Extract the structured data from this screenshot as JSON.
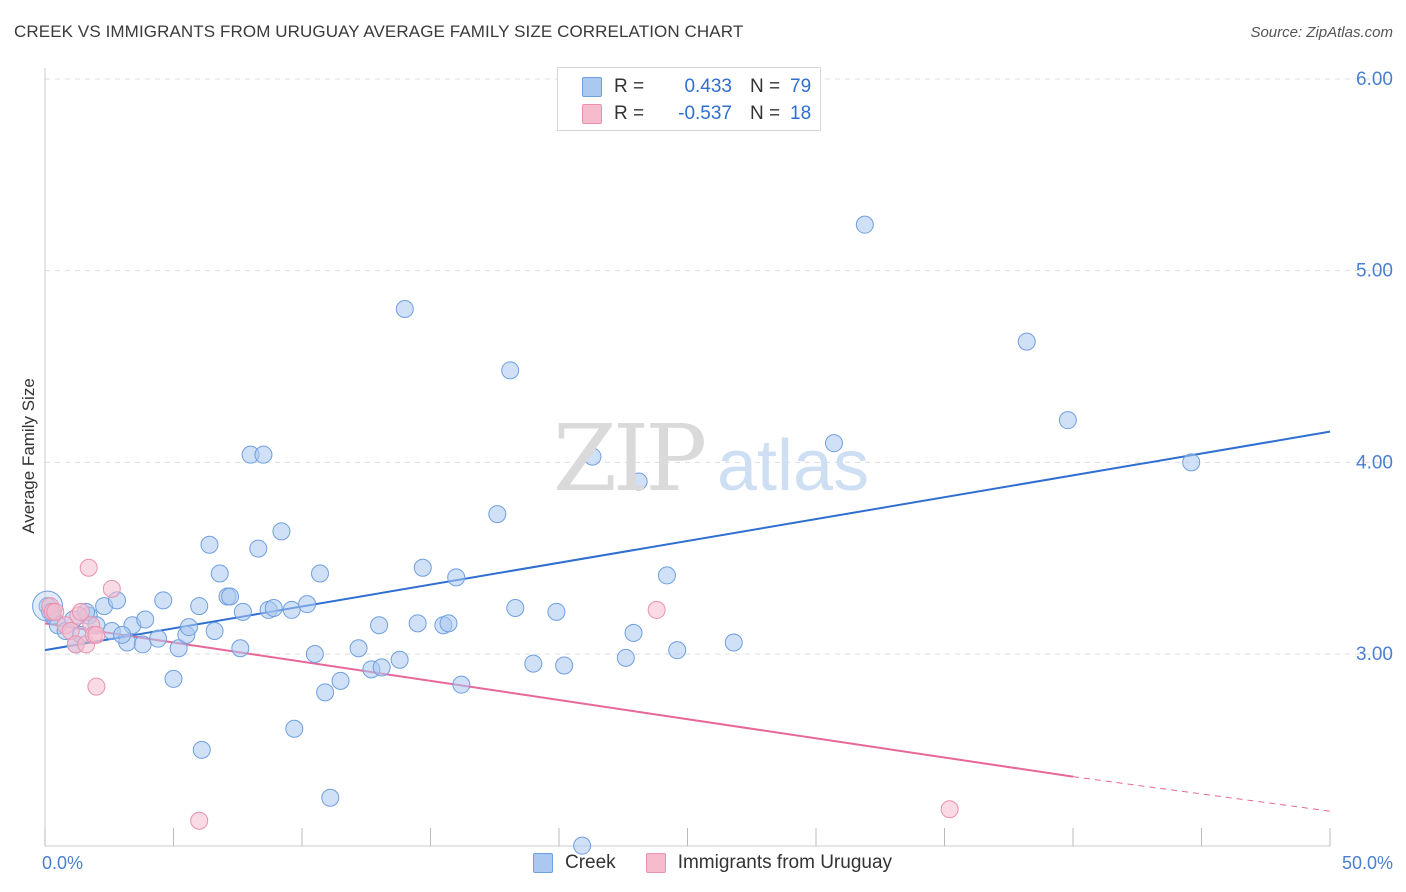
{
  "title": "CREEK VS IMMIGRANTS FROM URUGUAY AVERAGE FAMILY SIZE CORRELATION CHART",
  "source": "Source: ZipAtlas.com",
  "watermark": {
    "zip": "ZIP",
    "atlas": "atlas"
  },
  "legend": {
    "rows": [
      {
        "r_label": "R =",
        "r_value": "0.433",
        "n_label": "N =",
        "n_value": "79"
      },
      {
        "r_label": "R =",
        "r_value": "-0.537",
        "n_label": "N =",
        "n_value": "18"
      }
    ]
  },
  "bottom_legend": {
    "creek": "Creek",
    "uruguay": "Immigrants from Uruguay"
  },
  "colors": {
    "creek_fill": "#aac8f0",
    "creek_stroke": "#6f9fdf",
    "creek_line": "#2f6fd0",
    "uruguay_fill": "#f6bccd",
    "uruguay_stroke": "#e893ae",
    "uruguay_line": "#e8679a",
    "label": "#4a7fd0",
    "grid": "#dddddd"
  },
  "chart_data": {
    "type": "scatter",
    "xlabel": "",
    "ylabel": "Average Family Size",
    "xlim": [
      0,
      50
    ],
    "ylim": [
      2.0,
      6.1
    ],
    "x_tick_labels": [
      "0.0%",
      "50.0%"
    ],
    "y_ticks": [
      3.0,
      4.0,
      5.0,
      6.0
    ],
    "y_tick_labels": [
      "3.00",
      "4.00",
      "5.00",
      "6.00"
    ],
    "series": [
      {
        "name": "Creek",
        "points": [
          [
            0.1,
            3.25
          ],
          [
            0.3,
            3.2
          ],
          [
            0.5,
            3.15
          ],
          [
            0.8,
            3.12
          ],
          [
            1.1,
            3.18
          ],
          [
            1.2,
            3.05
          ],
          [
            1.4,
            3.1
          ],
          [
            1.7,
            3.2
          ],
          [
            2.0,
            3.15
          ],
          [
            2.3,
            3.25
          ],
          [
            2.6,
            3.12
          ],
          [
            2.8,
            3.28
          ],
          [
            3.2,
            3.06
          ],
          [
            3.4,
            3.15
          ],
          [
            3.8,
            3.05
          ],
          [
            3.9,
            3.18
          ],
          [
            4.4,
            3.08
          ],
          [
            4.6,
            3.28
          ],
          [
            5.0,
            2.87
          ],
          [
            5.2,
            3.03
          ],
          [
            5.5,
            3.1
          ],
          [
            5.6,
            3.14
          ],
          [
            6.0,
            3.25
          ],
          [
            6.1,
            2.5
          ],
          [
            6.4,
            3.57
          ],
          [
            6.6,
            3.12
          ],
          [
            6.8,
            3.42
          ],
          [
            7.1,
            3.3
          ],
          [
            7.2,
            3.3
          ],
          [
            7.6,
            3.03
          ],
          [
            7.7,
            3.22
          ],
          [
            8.0,
            4.04
          ],
          [
            8.3,
            3.55
          ],
          [
            8.5,
            4.04
          ],
          [
            8.7,
            3.23
          ],
          [
            8.9,
            3.24
          ],
          [
            9.2,
            3.64
          ],
          [
            9.6,
            3.23
          ],
          [
            9.7,
            2.61
          ],
          [
            10.2,
            3.26
          ],
          [
            10.5,
            3.0
          ],
          [
            10.7,
            3.42
          ],
          [
            10.9,
            2.8
          ],
          [
            11.1,
            2.25
          ],
          [
            11.5,
            2.86
          ],
          [
            12.2,
            3.03
          ],
          [
            12.7,
            2.92
          ],
          [
            13.0,
            3.15
          ],
          [
            13.8,
            2.97
          ],
          [
            14.0,
            4.8
          ],
          [
            14.5,
            3.16
          ],
          [
            14.7,
            3.45
          ],
          [
            15.5,
            3.15
          ],
          [
            15.7,
            3.16
          ],
          [
            16.0,
            3.4
          ],
          [
            16.2,
            2.84
          ],
          [
            17.6,
            3.73
          ],
          [
            18.1,
            4.48
          ],
          [
            18.3,
            3.24
          ],
          [
            19.0,
            2.95
          ],
          [
            19.9,
            3.22
          ],
          [
            20.2,
            2.94
          ],
          [
            20.9,
            2.0
          ],
          [
            21.3,
            4.03
          ],
          [
            22.6,
            2.98
          ],
          [
            22.9,
            3.11
          ],
          [
            23.1,
            3.9
          ],
          [
            24.2,
            3.41
          ],
          [
            24.6,
            3.02
          ],
          [
            26.8,
            3.06
          ],
          [
            30.7,
            4.1
          ],
          [
            31.9,
            5.24
          ],
          [
            38.2,
            4.63
          ],
          [
            39.8,
            4.22
          ],
          [
            44.6,
            4.0
          ],
          [
            0.2,
            3.22
          ],
          [
            1.6,
            3.22
          ],
          [
            3.0,
            3.1
          ],
          [
            13.1,
            2.93
          ]
        ],
        "trend": {
          "x0": 0,
          "y0": 3.02,
          "x1": 50,
          "y1": 4.16
        }
      },
      {
        "name": "Immigrants from Uruguay",
        "points": [
          [
            0.2,
            3.25
          ],
          [
            0.3,
            3.22
          ],
          [
            0.4,
            3.22
          ],
          [
            0.8,
            3.15
          ],
          [
            1.0,
            3.12
          ],
          [
            1.2,
            3.05
          ],
          [
            1.3,
            3.2
          ],
          [
            1.4,
            3.22
          ],
          [
            1.6,
            3.05
          ],
          [
            1.8,
            3.15
          ],
          [
            1.9,
            3.1
          ],
          [
            2.0,
            3.1
          ],
          [
            1.7,
            3.45
          ],
          [
            2.0,
            2.83
          ],
          [
            2.6,
            3.34
          ],
          [
            6.0,
            2.13
          ],
          [
            23.8,
            3.23
          ],
          [
            35.2,
            2.19
          ]
        ],
        "trend": {
          "x0": 0,
          "y0": 3.16,
          "x1": 40,
          "y1": 2.36,
          "dash_to_x": 50,
          "dash_to_y": 2.18
        }
      }
    ]
  }
}
